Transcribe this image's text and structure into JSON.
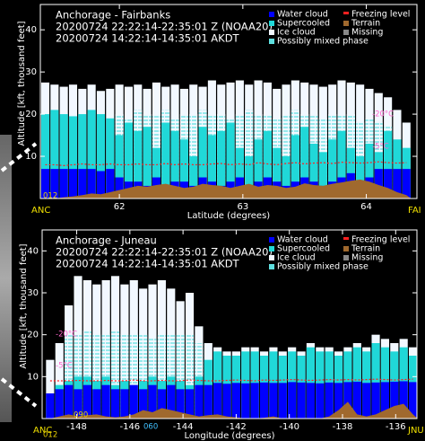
{
  "chart_data": [
    {
      "type": "cloud-section",
      "title": "Anchorage - Fairbanks",
      "subtitle": [
        "20200724 22:22:14-22:35:01 Z (NOAA20)",
        "20200724 14:22:14-14:35:01 AKDT"
      ],
      "xlabel": "Latitude (degrees)",
      "ylabel": "Altitude [kft, thousand feet]",
      "start_label": "ANC",
      "end_label": "FAI",
      "xlim": [
        61.36,
        64.41
      ],
      "ylim": [
        0,
        46
      ],
      "xticks": [
        62,
        63,
        64
      ],
      "yticks": [
        10,
        20,
        30,
        40
      ],
      "x": [
        61.4,
        61.475,
        61.55,
        61.625,
        61.7,
        61.775,
        61.85,
        61.925,
        62.0,
        62.075,
        62.15,
        62.225,
        62.3,
        62.375,
        62.45,
        62.525,
        62.6,
        62.675,
        62.75,
        62.825,
        62.9,
        62.975,
        63.05,
        63.125,
        63.2,
        63.275,
        63.35,
        63.425,
        63.5,
        63.575,
        63.65,
        63.725,
        63.8,
        63.875,
        63.95,
        64.025,
        64.1,
        64.175,
        64.25,
        64.325
      ],
      "series": [
        {
          "name": "Ice cloud",
          "color": "#f2f8ff",
          "style": "bar",
          "values": [
            27.5,
            27,
            26.5,
            27,
            26,
            27,
            25.5,
            26,
            27,
            26.5,
            27,
            26,
            27.5,
            26.5,
            27,
            26,
            27,
            26.5,
            28,
            27,
            27.5,
            28,
            27,
            28,
            27.5,
            26,
            27,
            28,
            27.5,
            27,
            26.5,
            27,
            28,
            27.5,
            27,
            26,
            25,
            24,
            21,
            18
          ]
        },
        {
          "name": "Possibly mixed phase",
          "color": "#5fe0e0",
          "style": "hatch",
          "values": [
            null,
            null,
            null,
            null,
            null,
            null,
            null,
            null,
            20,
            19,
            21,
            20,
            20,
            21,
            19,
            20,
            20,
            21,
            20,
            20,
            19,
            20,
            21,
            20,
            20,
            19,
            20,
            21,
            20,
            20,
            19,
            20,
            20,
            20,
            18,
            19,
            18,
            17,
            null,
            null
          ]
        },
        {
          "name": "Supercooled",
          "color": "#20d8d8",
          "style": "bar",
          "values": [
            20,
            21,
            20,
            19.5,
            20,
            21,
            20,
            19,
            15,
            18,
            16,
            17,
            12,
            18,
            16,
            14,
            10,
            17,
            15,
            16,
            18,
            12,
            10,
            14,
            16,
            12,
            10,
            15,
            17,
            13,
            11,
            14,
            16,
            12,
            10,
            13,
            11,
            16,
            14,
            12
          ]
        },
        {
          "name": "Water cloud",
          "color": "#0000ff",
          "style": "bar",
          "values": [
            7,
            7,
            7,
            7,
            7,
            7,
            6.5,
            7,
            5,
            4,
            4,
            3,
            5,
            3,
            4,
            4,
            3,
            5,
            4,
            3,
            4,
            5,
            3,
            4,
            5,
            4,
            3,
            4,
            5,
            4,
            3,
            4,
            5,
            6,
            4,
            5,
            7,
            7,
            7,
            7
          ]
        },
        {
          "name": "Missing",
          "color": "#888888",
          "style": "bar",
          "values": [
            null,
            null,
            null,
            null,
            null,
            null,
            null,
            null,
            null,
            null,
            null,
            null,
            null,
            null,
            null,
            null,
            null,
            null,
            null,
            null,
            null,
            null,
            null,
            null,
            null,
            null,
            null,
            null,
            null,
            null,
            null,
            null,
            null,
            null,
            null,
            null,
            null,
            null,
            null,
            null
          ]
        },
        {
          "name": "Terrain",
          "color": "#a0692e",
          "style": "area",
          "values": [
            0,
            0,
            0.3,
            0.5,
            0.8,
            1.2,
            1,
            1.5,
            2,
            2.5,
            3,
            2.8,
            3.2,
            3.5,
            3,
            2.5,
            2.8,
            3.5,
            3.2,
            3,
            2.5,
            3,
            3.5,
            2.8,
            3.2,
            3,
            2.5,
            2.8,
            3.6,
            3.2,
            3,
            3.5,
            3.8,
            4.2,
            4.5,
            4,
            3.2,
            2.5,
            1.5,
            0.8
          ]
        },
        {
          "name": "Freezing level",
          "color": "#ff2020",
          "style": "line",
          "values": [
            8,
            8,
            7.8,
            8,
            8.2,
            8,
            8,
            8.2,
            8,
            8,
            8.2,
            8,
            8,
            8.3,
            8,
            8.2,
            8,
            8,
            8.2,
            8.3,
            8,
            8.2,
            8,
            8.5,
            8.2,
            8,
            8.3,
            8.5,
            8.2,
            8.4,
            8.5,
            8.3,
            8.6,
            8.5,
            8.4,
            8.5,
            8.7,
            8.5,
            8.4,
            8.5
          ]
        }
      ],
      "annotations": [
        {
          "text": "-20°C",
          "color": "#ff66cc"
        },
        {
          "text": "-5°C",
          "color": "#ff66cc"
        },
        {
          "text": "012",
          "color": "#e8d000"
        }
      ]
    },
    {
      "type": "cloud-section",
      "title": "Anchorage - Juneau",
      "subtitle": [
        "20200724 22:22:14-22:35:01 Z (NOAA20)",
        "20200724 14:22:14-14:35:01 AKDT"
      ],
      "xlabel": "Longitude (degrees)",
      "ylabel": "Altitude [kft, thousand feet]",
      "start_label": "ANC",
      "end_label": "JNU",
      "xlim": [
        -149.3,
        -135.2
      ],
      "ylim": [
        0,
        45
      ],
      "xticks": [
        -148,
        -146,
        -144,
        -142,
        -140,
        -138,
        -136
      ],
      "yticks": [
        10,
        20,
        30,
        40
      ],
      "x": [
        -149.0,
        -148.65,
        -148.3,
        -147.95,
        -147.6,
        -147.25,
        -146.9,
        -146.55,
        -146.2,
        -145.85,
        -145.5,
        -145.15,
        -144.8,
        -144.45,
        -144.1,
        -143.75,
        -143.4,
        -143.05,
        -142.7,
        -142.35,
        -142.0,
        -141.65,
        -141.3,
        -140.95,
        -140.6,
        -140.25,
        -139.9,
        -139.55,
        -139.2,
        -138.85,
        -138.5,
        -138.15,
        -137.8,
        -137.45,
        -137.1,
        -136.75,
        -136.4,
        -136.05,
        -135.7,
        -135.35
      ],
      "series": [
        {
          "name": "Ice cloud",
          "color": "#f2f8ff",
          "style": "bar",
          "values": [
            14,
            18,
            27,
            34,
            33,
            32,
            33,
            34,
            32,
            33,
            31,
            32,
            33,
            31,
            28,
            30,
            22,
            18,
            17,
            16,
            16,
            17,
            17,
            16,
            17,
            16,
            17,
            16,
            18,
            17,
            17,
            16,
            17,
            18,
            17,
            20,
            19,
            18,
            19,
            17
          ]
        },
        {
          "name": "Possibly mixed phase",
          "color": "#5fe0e0",
          "style": "hatch",
          "values": [
            null,
            null,
            20,
            20,
            21,
            20,
            20,
            21,
            20,
            20,
            20,
            19,
            20,
            20,
            20,
            20,
            18,
            null,
            null,
            null,
            null,
            null,
            null,
            null,
            null,
            null,
            null,
            null,
            null,
            null,
            null,
            null,
            null,
            null,
            null,
            null,
            null,
            null,
            null,
            null
          ]
        },
        {
          "name": "Supercooled",
          "color": "#20d8d8",
          "style": "bar",
          "values": [
            5,
            8,
            9,
            10,
            10,
            9,
            10,
            8,
            9,
            8,
            9,
            10,
            9,
            10,
            9,
            8,
            10,
            14,
            16,
            15,
            15,
            16,
            16,
            15,
            16,
            15,
            16,
            15,
            17,
            16,
            16,
            15,
            16,
            17,
            16,
            18,
            17,
            16,
            17,
            15
          ]
        },
        {
          "name": "Water cloud",
          "color": "#0000ff",
          "style": "bar",
          "values": [
            6,
            7,
            8,
            7,
            8,
            7,
            8,
            7,
            7,
            8,
            7,
            8,
            7,
            8,
            7,
            7,
            8,
            8,
            8.5,
            8.3,
            8.5,
            8.4,
            8.5,
            8.6,
            8.5,
            8.5,
            8.7,
            8.6,
            8.5,
            8.4,
            8.6,
            8.5,
            8.7,
            8.8,
            8.5,
            8.6,
            8.7,
            8.8,
            8.9,
            8.7
          ]
        },
        {
          "name": "Missing",
          "color": "#888888",
          "style": "bar",
          "values": [
            null,
            null,
            null,
            null,
            null,
            null,
            null,
            null,
            null,
            null,
            null,
            null,
            null,
            null,
            null,
            null,
            null,
            null,
            null,
            null,
            null,
            null,
            null,
            null,
            null,
            null,
            null,
            null,
            null,
            null,
            null,
            null,
            null,
            null,
            null,
            null,
            null,
            null,
            null,
            null
          ]
        },
        {
          "name": "Terrain",
          "color": "#a0692e",
          "style": "area",
          "values": [
            0,
            0.5,
            1,
            0.5,
            0.8,
            1,
            0.5,
            0.3,
            0.5,
            1,
            2,
            1.5,
            2.5,
            2,
            1.5,
            1,
            0.5,
            0.8,
            1,
            0.5,
            0.3,
            0,
            0,
            0.2,
            0.5,
            0,
            0,
            0,
            0,
            0,
            0.5,
            2,
            4,
            1,
            0.5,
            1,
            2,
            3,
            3.5,
            1
          ]
        },
        {
          "name": "Freezing level",
          "color": "#ff2020",
          "style": "line",
          "values": [
            9,
            9,
            9,
            9.1,
            9,
            9,
            9.1,
            9,
            9,
            9.2,
            9,
            9,
            9.1,
            9,
            9,
            9.2,
            9.1,
            9,
            9,
            9.1,
            9.2,
            9.1,
            9,
            9.2,
            9.1,
            9.2,
            9.3,
            9.2,
            9.1,
            9.2,
            9.3,
            9.2,
            9.3,
            9.2,
            9.3,
            9.4,
            9.3,
            9.2,
            9.3,
            9.4
          ]
        }
      ],
      "annotations": [
        {
          "text": "-20°C",
          "color": "#ff66cc"
        },
        {
          "text": "-5°C",
          "color": "#ff66cc"
        },
        {
          "text": "090",
          "color": "#e8d000"
        },
        {
          "text": "060",
          "color": "#40c0ff"
        },
        {
          "text": "012",
          "color": "#e8d000"
        }
      ]
    }
  ]
}
